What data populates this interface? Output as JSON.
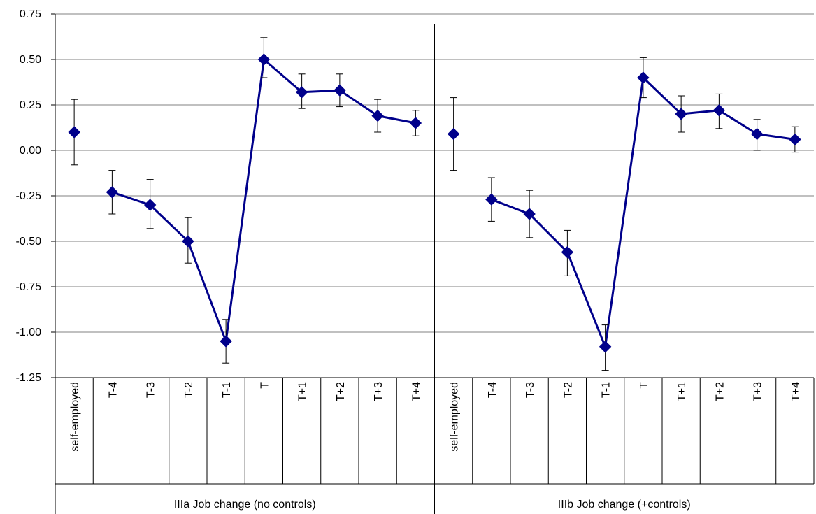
{
  "chart_data": {
    "type": "line",
    "ylim": [
      -1.25,
      0.75
    ],
    "y_ticks": [
      0.75,
      0.5,
      0.25,
      0.0,
      -0.25,
      -0.5,
      -0.75,
      -1.0,
      -1.25
    ],
    "y_tick_labels": [
      "0.75",
      "0.50",
      "0.25",
      "0.00",
      "-0.25",
      "-0.50",
      "-0.75",
      "-1.00",
      "-1.25"
    ],
    "grid": true,
    "legend": "none",
    "colors": {
      "series": "#00008b",
      "error_bar": "#000000",
      "grid": "#808080",
      "axis": "#000000"
    },
    "groups": [
      {
        "label": "IIIa Job change (no controls)",
        "categories": [
          "self-employed",
          "T-4",
          "T-3",
          "T-2",
          "T-1",
          "T",
          "T+1",
          "T+2",
          "T+3",
          "T+4"
        ],
        "values": [
          0.1,
          -0.23,
          -0.3,
          -0.5,
          -1.05,
          0.5,
          0.32,
          0.33,
          0.19,
          0.15
        ],
        "err_low": [
          -0.08,
          -0.35,
          -0.43,
          -0.62,
          -1.17,
          0.4,
          0.23,
          0.24,
          0.1,
          0.08
        ],
        "err_high": [
          0.28,
          -0.11,
          -0.16,
          -0.37,
          -0.93,
          0.62,
          0.42,
          0.42,
          0.28,
          0.22
        ],
        "connect_from": 1
      },
      {
        "label": "IIIb Job change (+controls)",
        "categories": [
          "self-employed",
          "T-4",
          "T-3",
          "T-2",
          "T-1",
          "T",
          "T+1",
          "T+2",
          "T+3",
          "T+4"
        ],
        "values": [
          0.09,
          -0.27,
          -0.35,
          -0.56,
          -1.08,
          0.4,
          0.2,
          0.22,
          0.09,
          0.06
        ],
        "err_low": [
          -0.11,
          -0.39,
          -0.48,
          -0.69,
          -1.21,
          0.29,
          0.1,
          0.12,
          0.0,
          -0.01
        ],
        "err_high": [
          0.29,
          -0.15,
          -0.22,
          -0.44,
          -0.96,
          0.51,
          0.3,
          0.31,
          0.17,
          0.13
        ],
        "connect_from": 1
      }
    ]
  }
}
